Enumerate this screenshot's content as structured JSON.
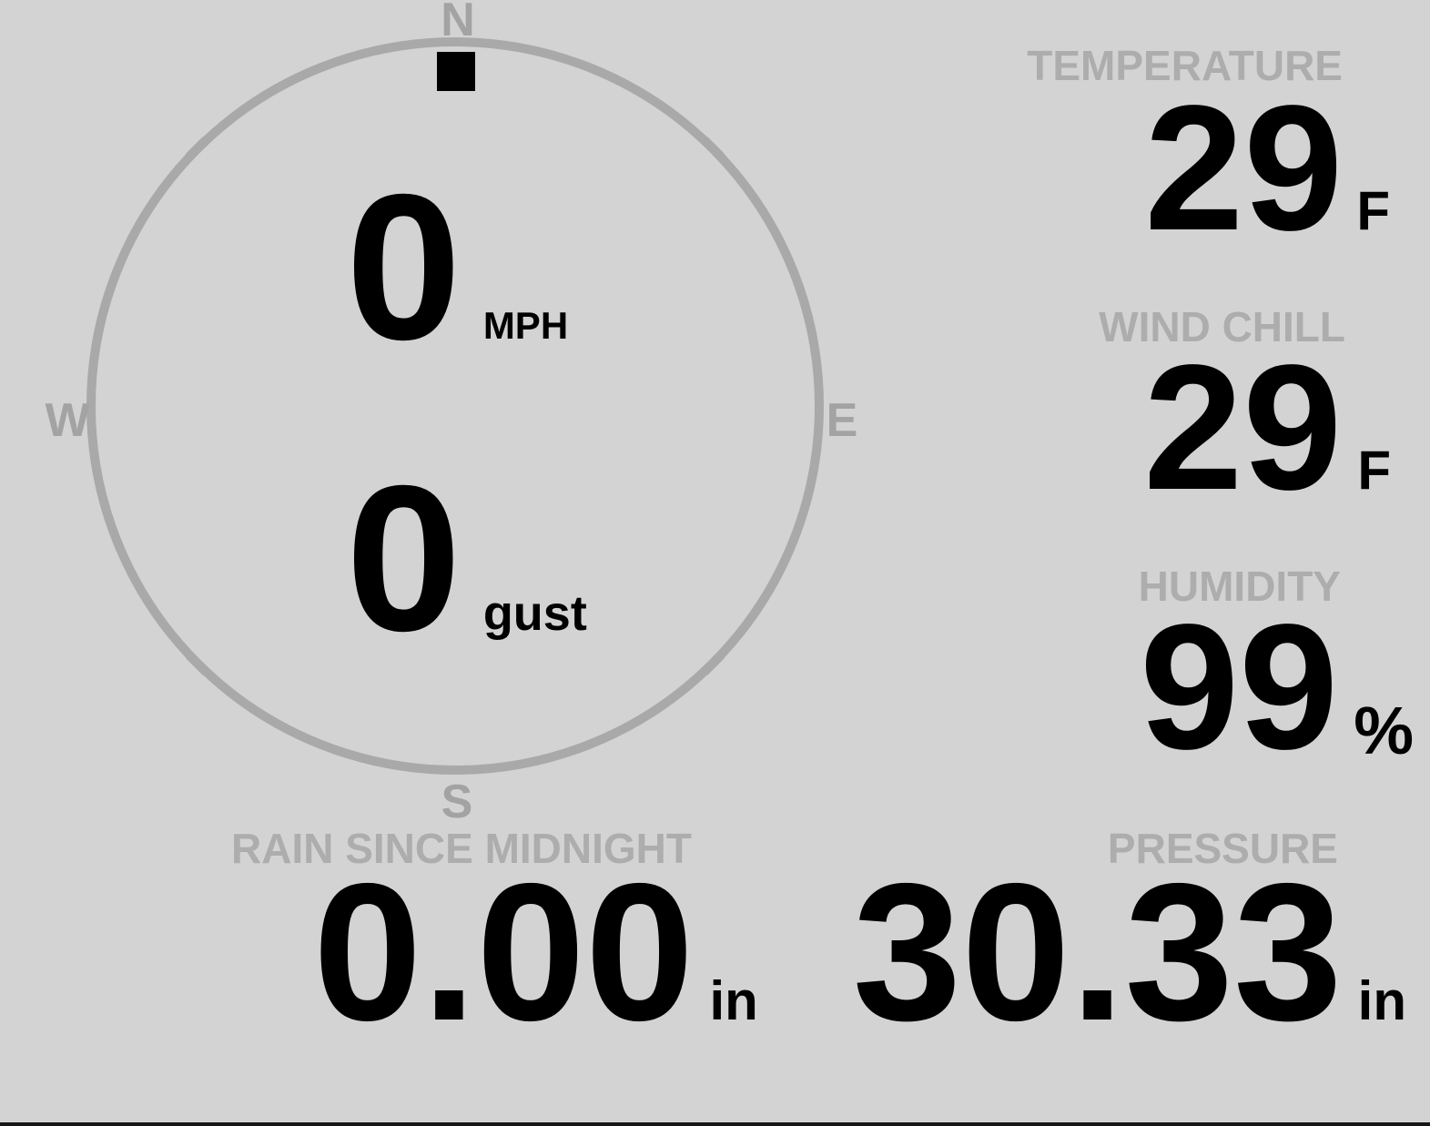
{
  "compass": {
    "cardinal_labels": {
      "north": "N",
      "east": "E",
      "south": "S",
      "west": "W"
    },
    "wind_direction": "N",
    "wind_speed": {
      "value": "0",
      "unit": "MPH"
    },
    "wind_gust": {
      "value": "0",
      "unit": "gust"
    }
  },
  "metrics": {
    "temperature": {
      "label": "TEMPERATURE",
      "value": "29",
      "unit": "F"
    },
    "wind_chill": {
      "label": "WIND CHILL",
      "value": "29",
      "unit": "F"
    },
    "humidity": {
      "label": "HUMIDITY",
      "value": "99",
      "unit": "%"
    },
    "rain_since_midnight": {
      "label": "RAIN SINCE MIDNIGHT",
      "value": "0.00",
      "unit": "in"
    },
    "pressure": {
      "label": "PRESSURE",
      "value": "30.33",
      "unit": "in"
    }
  },
  "colors": {
    "bg": "#d3d3d3",
    "ring": "#a9a9a9",
    "letter": "#a3a3a3",
    "label": "#adadad",
    "value": "#000000",
    "strip": "#161616"
  }
}
